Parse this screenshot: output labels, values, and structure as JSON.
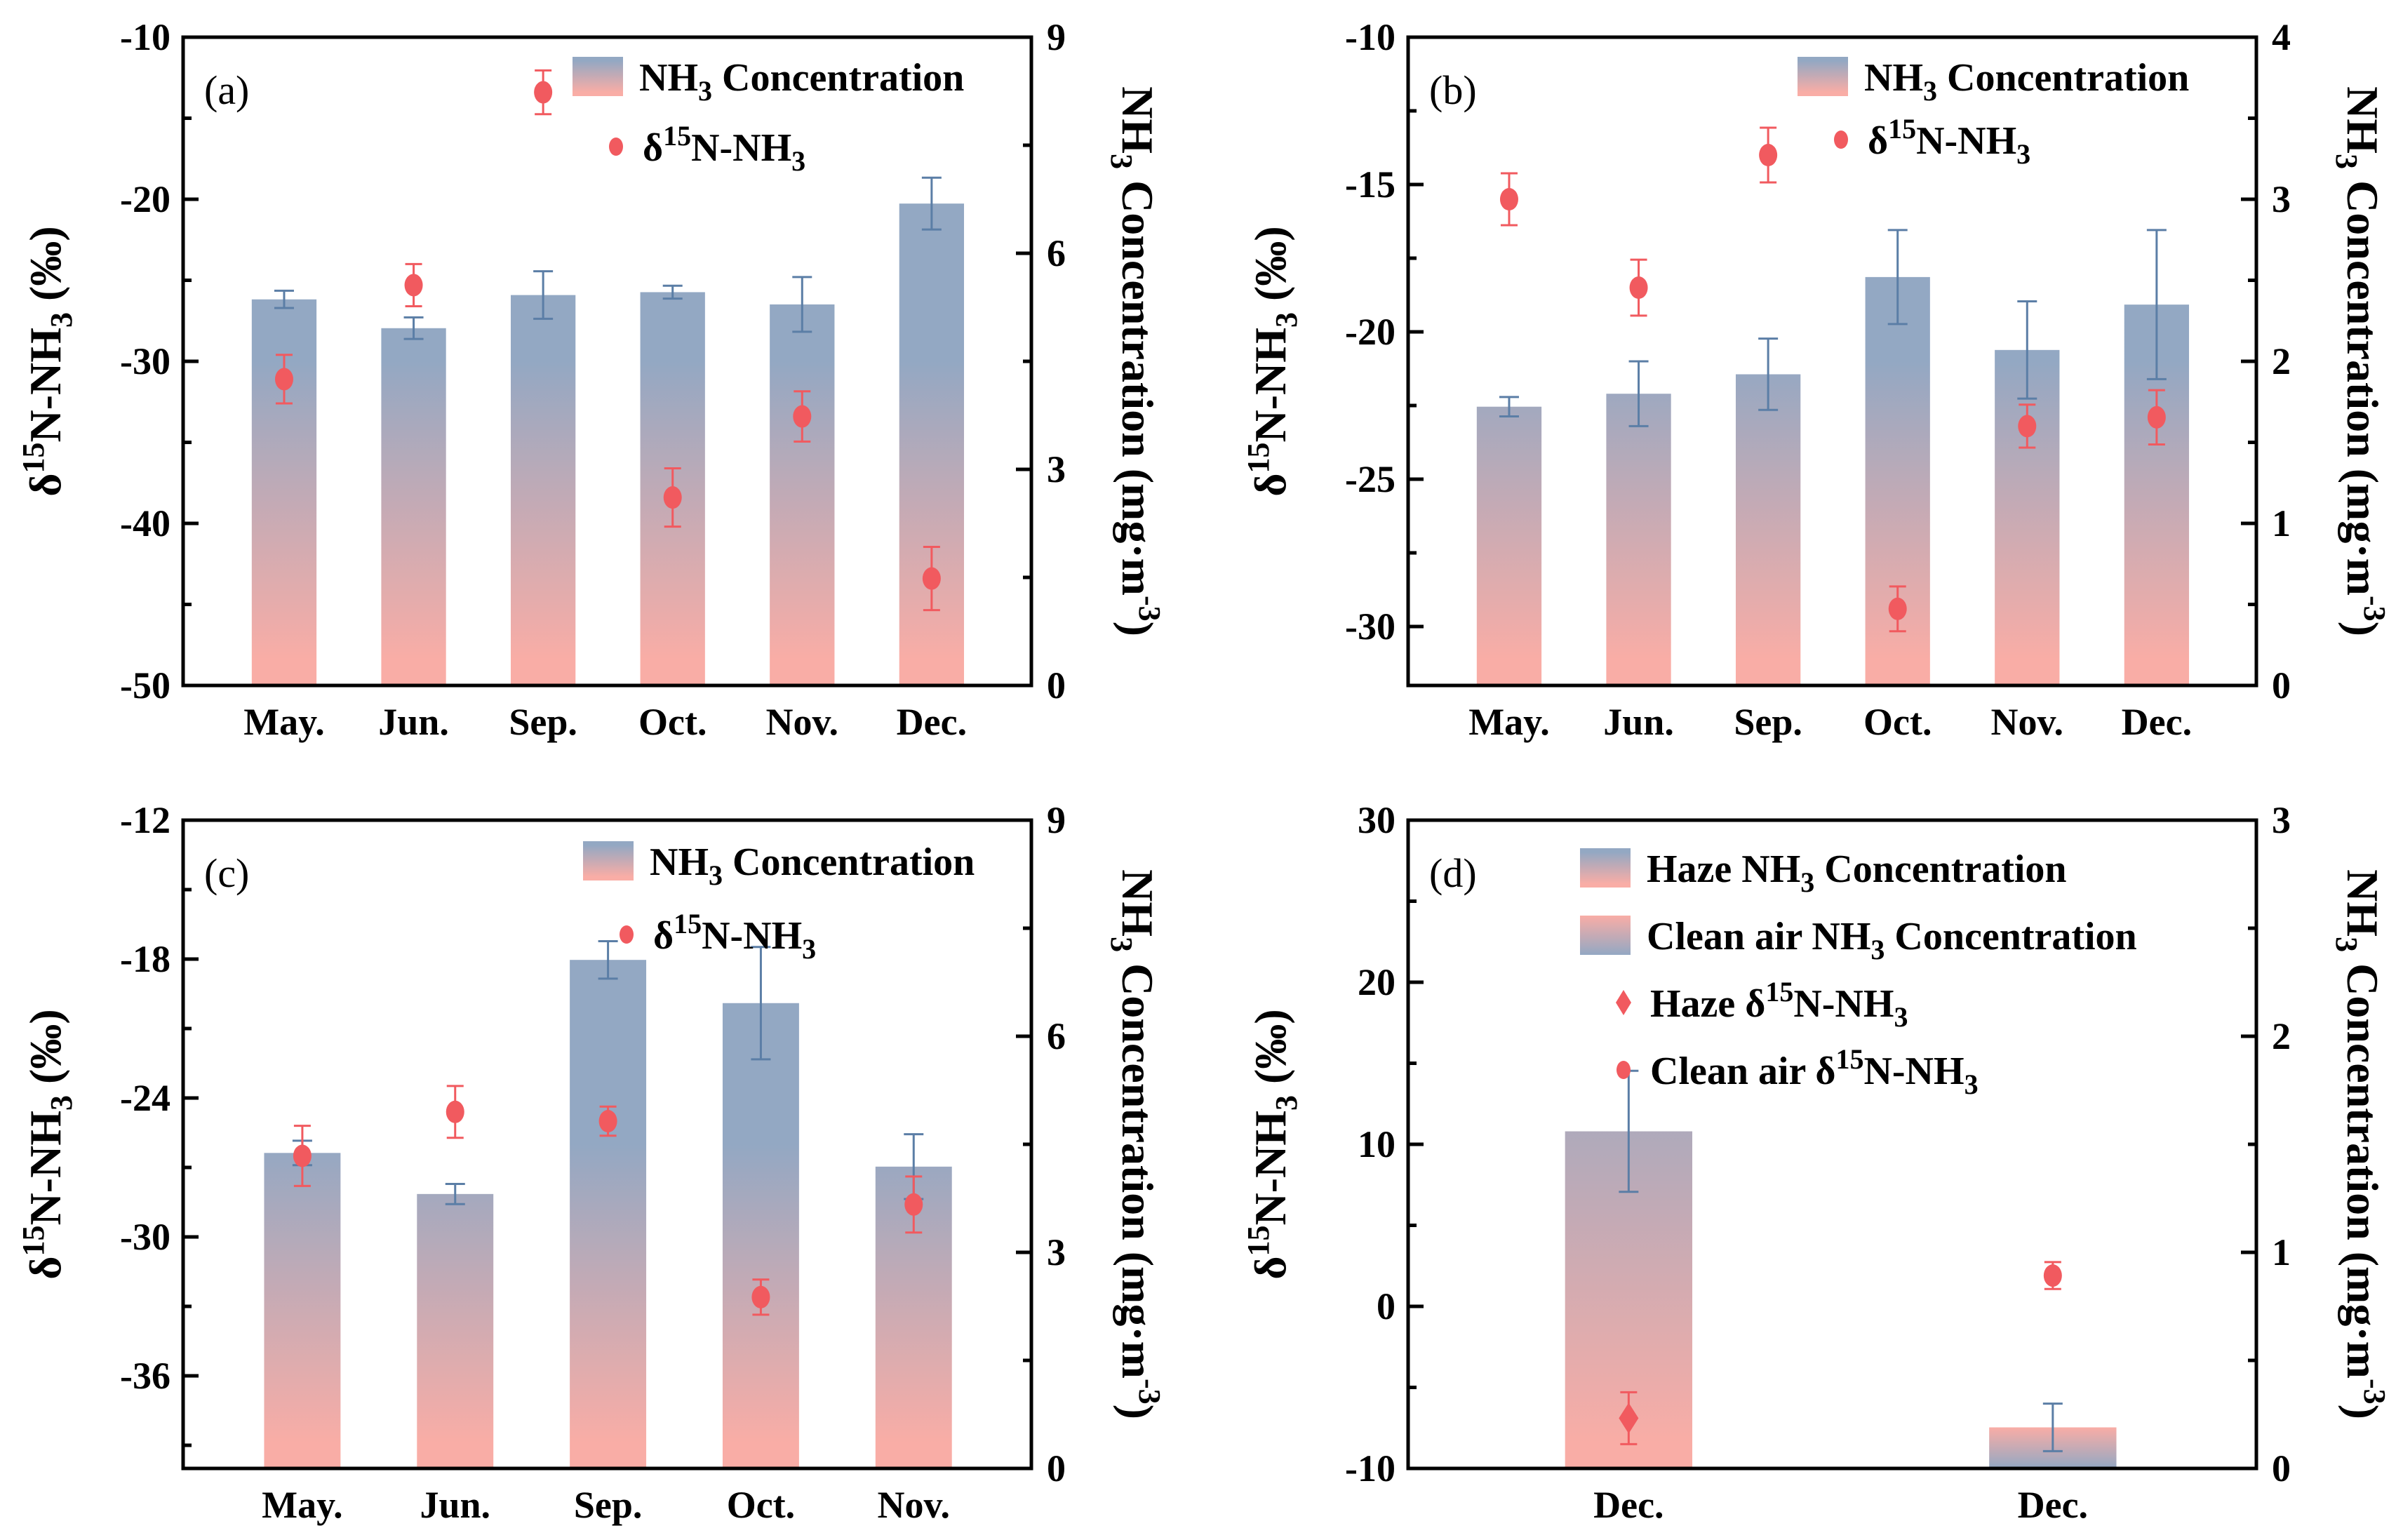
{
  "figure": {
    "colors": {
      "bar_top": "#93A8C3",
      "bar_bottom": "#F9ADA6",
      "bar_error": "#5B7EA6",
      "marker": "#F15A5F",
      "marker_error": "#F15A5F"
    }
  },
  "chart_data": [
    {
      "type": "bar",
      "panel_label": "(a)",
      "categories": [
        "May.",
        "Jun.",
        "Sep.",
        "Oct.",
        "Nov.",
        "Dec."
      ],
      "ylabel": "δ15N-NH3 (‰)",
      "ylabel_parts": {
        "prefix": "δ",
        "sup": "15",
        "mid": "N-NH",
        "sub": "3",
        "suffix": " (‰)"
      },
      "y2label": "NH3 Concentration (mg·m-3)",
      "y2label_parts": {
        "prefix": "NH",
        "sub": "3",
        "mid": " Concentration (mg·m",
        "sup": "-3",
        "suffix": ")"
      },
      "ylim": [
        -50,
        -10
      ],
      "yticks": [
        -50,
        -40,
        -30,
        -20,
        -10
      ],
      "y2lim": [
        0,
        9
      ],
      "y2ticks": [
        0,
        3,
        6,
        9
      ],
      "legend": [
        {
          "label": "NH3 Concentration",
          "parts": {
            "a": "NH",
            "sub": "3",
            "b": " Concentration"
          },
          "kind": "bar-gradient"
        },
        {
          "label": "δ15N-NH3",
          "parts": {
            "a": "δ",
            "sup": "15",
            "b": "N-NH",
            "sub": "3"
          },
          "kind": "circle"
        }
      ],
      "legend_position": "top-right",
      "series": [
        {
          "name": "NH3 Concentration",
          "axis": "right",
          "kind": "bar",
          "values": [
            5.36,
            4.96,
            5.42,
            5.46,
            5.29,
            6.69
          ],
          "errors": [
            0.12,
            0.15,
            0.33,
            0.09,
            0.38,
            0.36
          ]
        },
        {
          "name": "δ15N-NH3",
          "axis": "left",
          "kind": "circle",
          "values": [
            -31.1,
            -25.3,
            -13.4,
            -38.4,
            -33.4,
            -43.4
          ],
          "errors": [
            1.5,
            1.3,
            1.35,
            1.8,
            1.55,
            1.95
          ]
        }
      ]
    },
    {
      "type": "bar",
      "panel_label": "(b)",
      "categories": [
        "May.",
        "Jun.",
        "Sep.",
        "Oct.",
        "Nov.",
        "Dec."
      ],
      "ylabel": "δ15N-NH3 (‰)",
      "ylabel_parts": {
        "prefix": "δ",
        "sup": "15",
        "mid": "N-NH",
        "sub": "3",
        "suffix": " (‰)"
      },
      "y2label": "NH3 Concentration (mg·m-3)",
      "y2label_parts": {
        "prefix": "NH",
        "sub": "3",
        "mid": " Concentration (mg·m",
        "sup": "-3",
        "suffix": ")"
      },
      "ylim": [
        -32,
        -10
      ],
      "yticks": [
        -30,
        -25,
        -20,
        -15,
        -10
      ],
      "y2lim": [
        0,
        4
      ],
      "y2ticks": [
        0,
        1,
        2,
        3,
        4
      ],
      "legend": [
        {
          "label": "NH3 Concentration",
          "parts": {
            "a": "NH",
            "sub": "3",
            "b": " Concentration"
          },
          "kind": "bar-gradient"
        },
        {
          "label": "δ15N-NH3",
          "parts": {
            "a": "δ",
            "sup": "15",
            "b": "N-NH",
            "sub": "3"
          },
          "kind": "circle"
        }
      ],
      "legend_position": "top-right",
      "series": [
        {
          "name": "NH3 Concentration",
          "axis": "right",
          "kind": "bar",
          "values": [
            1.72,
            1.8,
            1.92,
            2.52,
            2.07,
            2.35
          ],
          "errors": [
            0.06,
            0.2,
            0.22,
            0.29,
            0.3,
            0.46
          ]
        },
        {
          "name": "δ15N-NH3",
          "axis": "left",
          "kind": "circle",
          "values": [
            -15.5,
            -18.5,
            -14.0,
            -29.4,
            -23.2,
            -22.9
          ],
          "errors": [
            0.88,
            0.95,
            0.93,
            0.76,
            0.73,
            0.92
          ]
        }
      ]
    },
    {
      "type": "bar",
      "panel_label": "(c)",
      "categories": [
        "May.",
        "Jun.",
        "Sep.",
        "Oct.",
        "Nov."
      ],
      "ylabel": "δ15N-NH3 (‰)",
      "ylabel_parts": {
        "prefix": "δ",
        "sup": "15",
        "mid": "N-NH",
        "sub": "3",
        "suffix": " (‰)"
      },
      "y2label": "NH3 Concentration (mg·m-3)",
      "y2label_parts": {
        "prefix": "NH",
        "sub": "3",
        "mid": " Concentration (mg·m",
        "sup": "-3",
        "suffix": ")"
      },
      "ylim": [
        -40,
        -12
      ],
      "yticks": [
        -36,
        -30,
        -24,
        -18,
        -12
      ],
      "y2lim": [
        0,
        9
      ],
      "y2ticks": [
        0,
        3,
        6,
        9
      ],
      "legend": [
        {
          "label": "NH3 Concentration",
          "parts": {
            "a": "NH",
            "sub": "3",
            "b": " Concentration"
          },
          "kind": "bar-gradient"
        },
        {
          "label": "δ15N-NH3",
          "parts": {
            "a": "δ",
            "sup": "15",
            "b": "N-NH",
            "sub": "3"
          },
          "kind": "circle"
        }
      ],
      "legend_position": "top-right",
      "series": [
        {
          "name": "NH3 Concentration",
          "axis": "right",
          "kind": "bar",
          "values": [
            4.38,
            3.81,
            7.06,
            6.46,
            4.19
          ],
          "errors": [
            0.17,
            0.14,
            0.26,
            0.78,
            0.45
          ]
        },
        {
          "name": "δ15N-NH3",
          "axis": "left",
          "kind": "circle",
          "values": [
            -26.5,
            -24.6,
            -25.0,
            -32.6,
            -28.6
          ],
          "errors": [
            1.3,
            1.12,
            0.63,
            0.76,
            1.21
          ]
        }
      ]
    },
    {
      "type": "bar",
      "panel_label": "(d)",
      "categories": [
        "Dec.",
        "Dec."
      ],
      "ylabel": "δ15N-NH3 (‰)",
      "ylabel_parts": {
        "prefix": "δ",
        "sup": "15",
        "mid": "N-NH",
        "sub": "3",
        "suffix": " (‰)"
      },
      "y2label": "NH3 Concentration (mg·m-3)",
      "y2label_parts": {
        "prefix": "NH",
        "sub": "3",
        "mid": " Concentration (mg·m",
        "sup": "-3",
        "suffix": ")"
      },
      "ylim": [
        -10,
        30
      ],
      "yticks": [
        -10,
        0,
        10,
        20,
        30
      ],
      "y2lim": [
        0,
        3
      ],
      "y2ticks": [
        0,
        1,
        2,
        3
      ],
      "legend": [
        {
          "label": "Haze NH3 Concentration",
          "parts": {
            "a": "Haze NH",
            "sub": "3",
            "b": " Concentration"
          },
          "kind": "bar-gradient"
        },
        {
          "label": "Clean air NH3 Concentration",
          "parts": {
            "a": "Clean air NH",
            "sub": "3",
            "b": " Concentration"
          },
          "kind": "bar-gradient-reversed"
        },
        {
          "label": "Haze δ15N-NH3",
          "parts": {
            "a": "Haze δ",
            "sup": "15",
            "b": "N-NH",
            "sub": "3"
          },
          "kind": "diamond"
        },
        {
          "label": "Clean air δ15N-NH3",
          "parts": {
            "a": "Clean air δ",
            "sup": "15",
            "b": "N-NH",
            "sub": "3"
          },
          "kind": "circle"
        }
      ],
      "legend_position": "top",
      "series": [
        {
          "name": "Haze NH3 Concentration",
          "axis": "right",
          "kind": "bar",
          "category_index": 0,
          "values": [
            1.56
          ],
          "errors": [
            0.28
          ]
        },
        {
          "name": "Clean air NH3 Concentration",
          "axis": "right",
          "kind": "bar-reversed",
          "category_index": 1,
          "values": [
            0.19
          ],
          "errors": [
            0.11
          ]
        },
        {
          "name": "Haze δ15N-NH3",
          "axis": "left",
          "kind": "diamond",
          "category_index": 0,
          "values": [
            -6.9
          ],
          "errors": [
            1.6
          ]
        },
        {
          "name": "Clean air δ15N-NH3",
          "axis": "left",
          "kind": "circle",
          "category_index": 1,
          "values": [
            1.9
          ],
          "errors": [
            0.83
          ]
        }
      ]
    }
  ]
}
